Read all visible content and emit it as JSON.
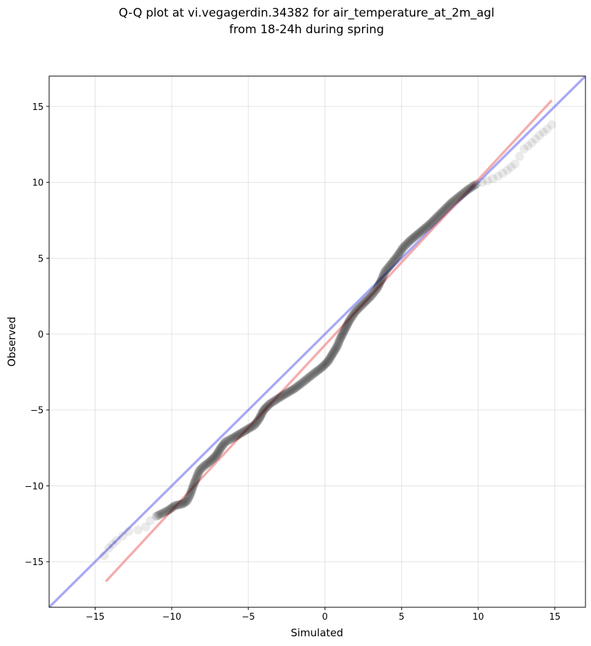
{
  "chart_data": {
    "type": "scatter",
    "title_line1": "Q-Q plot at vi.vegagerdin.34382 for air_temperature_at_2m_agl",
    "title_line2": "from 18-24h during spring",
    "xlabel": "Simulated",
    "ylabel": "Observed",
    "xlim": [
      -18,
      17
    ],
    "ylim": [
      -18,
      17
    ],
    "grid": true,
    "xticks": [
      -15,
      -10,
      -5,
      0,
      5,
      10,
      15
    ],
    "yticks": [
      -15,
      -10,
      -5,
      0,
      5,
      10,
      15
    ],
    "xtick_labels": [
      "−15",
      "−10",
      "−5",
      "0",
      "5",
      "10",
      "15"
    ],
    "ytick_labels": [
      "−15",
      "−10",
      "−5",
      "0",
      "5",
      "10",
      "15"
    ],
    "identity_line": {
      "color": "#6f6ff0",
      "points": [
        [
          -18,
          -18
        ],
        [
          17,
          17
        ]
      ]
    },
    "fit_line": {
      "color": "#f08a8a",
      "points": [
        [
          -14.3,
          -16.3
        ],
        [
          14.8,
          15.4
        ]
      ]
    },
    "points_color": "#000000",
    "quantiles": [
      {
        "x": -14.4,
        "y": -14.6
      },
      {
        "x": -14.1,
        "y": -14.1
      },
      {
        "x": -13.6,
        "y": -13.6
      },
      {
        "x": -13.2,
        "y": -13.3
      },
      {
        "x": -12.8,
        "y": -13.0
      },
      {
        "x": -12.2,
        "y": -12.9
      },
      {
        "x": -11.7,
        "y": -12.7
      },
      {
        "x": -11.4,
        "y": -12.3
      },
      {
        "x": -11.0,
        "y": -12.0
      },
      {
        "x": -10.6,
        "y": -11.8
      },
      {
        "x": -10.2,
        "y": -11.6
      },
      {
        "x": -9.8,
        "y": -11.3
      },
      {
        "x": -9.3,
        "y": -11.2
      },
      {
        "x": -9.0,
        "y": -11.0
      },
      {
        "x": -8.8,
        "y": -10.6
      },
      {
        "x": -8.6,
        "y": -10.0
      },
      {
        "x": -8.4,
        "y": -9.5
      },
      {
        "x": -8.2,
        "y": -9.0
      },
      {
        "x": -7.9,
        "y": -8.7
      },
      {
        "x": -7.5,
        "y": -8.4
      },
      {
        "x": -7.1,
        "y": -8.0
      },
      {
        "x": -6.8,
        "y": -7.5
      },
      {
        "x": -6.5,
        "y": -7.1
      },
      {
        "x": -6.1,
        "y": -6.9
      },
      {
        "x": -5.6,
        "y": -6.6
      },
      {
        "x": -5.1,
        "y": -6.3
      },
      {
        "x": -4.6,
        "y": -6.0
      },
      {
        "x": -4.3,
        "y": -5.6
      },
      {
        "x": -4.0,
        "y": -5.0
      },
      {
        "x": -3.6,
        "y": -4.6
      },
      {
        "x": -3.0,
        "y": -4.2
      },
      {
        "x": -2.5,
        "y": -3.9
      },
      {
        "x": -2.0,
        "y": -3.6
      },
      {
        "x": -1.6,
        "y": -3.3
      },
      {
        "x": -1.1,
        "y": -2.9
      },
      {
        "x": -0.6,
        "y": -2.5
      },
      {
        "x": -0.2,
        "y": -2.2
      },
      {
        "x": 0.2,
        "y": -1.8
      },
      {
        "x": 0.5,
        "y": -1.3
      },
      {
        "x": 0.8,
        "y": -0.8
      },
      {
        "x": 1.0,
        "y": -0.3
      },
      {
        "x": 1.3,
        "y": 0.3
      },
      {
        "x": 1.6,
        "y": 0.9
      },
      {
        "x": 2.0,
        "y": 1.5
      },
      {
        "x": 2.5,
        "y": 2.0
      },
      {
        "x": 3.0,
        "y": 2.5
      },
      {
        "x": 3.4,
        "y": 3.0
      },
      {
        "x": 3.7,
        "y": 3.6
      },
      {
        "x": 3.9,
        "y": 4.1
      },
      {
        "x": 4.3,
        "y": 4.6
      },
      {
        "x": 4.7,
        "y": 5.1
      },
      {
        "x": 5.1,
        "y": 5.7
      },
      {
        "x": 5.6,
        "y": 6.2
      },
      {
        "x": 6.2,
        "y": 6.7
      },
      {
        "x": 6.8,
        "y": 7.2
      },
      {
        "x": 7.3,
        "y": 7.7
      },
      {
        "x": 7.8,
        "y": 8.2
      },
      {
        "x": 8.3,
        "y": 8.7
      },
      {
        "x": 8.8,
        "y": 9.1
      },
      {
        "x": 9.3,
        "y": 9.5
      },
      {
        "x": 9.9,
        "y": 9.9
      },
      {
        "x": 10.6,
        "y": 10.1
      },
      {
        "x": 11.3,
        "y": 10.4
      },
      {
        "x": 11.9,
        "y": 10.8
      },
      {
        "x": 12.4,
        "y": 11.2
      },
      {
        "x": 12.7,
        "y": 11.7
      },
      {
        "x": 13.0,
        "y": 12.2
      },
      {
        "x": 13.5,
        "y": 12.6
      },
      {
        "x": 14.0,
        "y": 13.1
      },
      {
        "x": 14.5,
        "y": 13.5
      },
      {
        "x": 14.8,
        "y": 13.8
      }
    ]
  }
}
